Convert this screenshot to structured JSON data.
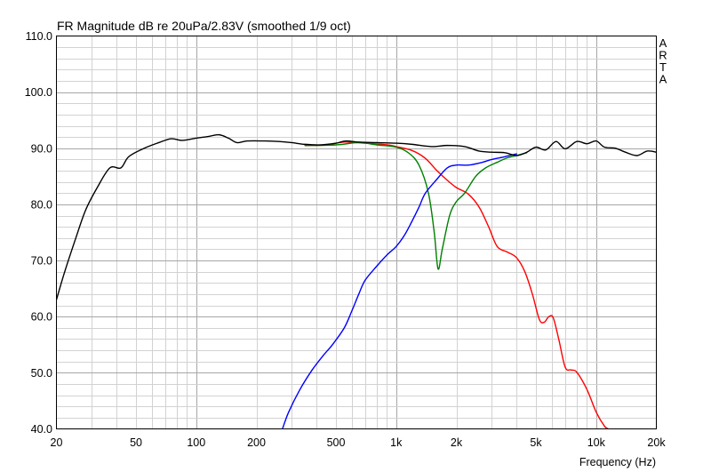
{
  "chart_data": {
    "type": "line",
    "title": "FR Magnitude dB re 20uPa/2.83V (smoothed 1/9 oct)",
    "xlabel": "Frequency (Hz)",
    "ylabel": "",
    "brand": "ARTA",
    "xscale": "log",
    "xlim": [
      20,
      20000
    ],
    "ylim": [
      40,
      110
    ],
    "grid": true,
    "x_ticks": [
      {
        "value": 20,
        "label": "20"
      },
      {
        "value": 50,
        "label": "50"
      },
      {
        "value": 100,
        "label": "100"
      },
      {
        "value": 200,
        "label": "200"
      },
      {
        "value": 500,
        "label": "500"
      },
      {
        "value": 1000,
        "label": "1k"
      },
      {
        "value": 2000,
        "label": "2k"
      },
      {
        "value": 5000,
        "label": "5k"
      },
      {
        "value": 10000,
        "label": "10k"
      },
      {
        "value": 20000,
        "label": "20k"
      }
    ],
    "y_ticks": [
      {
        "value": 40,
        "label": "40.0"
      },
      {
        "value": 50,
        "label": "50.0"
      },
      {
        "value": 60,
        "label": "60.0"
      },
      {
        "value": 70,
        "label": "70.0"
      },
      {
        "value": 80,
        "label": "80.0"
      },
      {
        "value": 90,
        "label": "90.0"
      },
      {
        "value": 100,
        "label": "100.0"
      },
      {
        "value": 110,
        "label": "110.0"
      }
    ],
    "series": [
      {
        "color": "#000000",
        "points": [
          [
            20,
            63
          ],
          [
            22,
            68
          ],
          [
            25,
            74
          ],
          [
            28,
            79
          ],
          [
            32,
            83
          ],
          [
            37,
            86.5
          ],
          [
            42,
            86.5
          ],
          [
            46,
            88.5
          ],
          [
            55,
            90
          ],
          [
            65,
            91
          ],
          [
            75,
            91.7
          ],
          [
            85,
            91.4
          ],
          [
            100,
            91.8
          ],
          [
            115,
            92.1
          ],
          [
            130,
            92.4
          ],
          [
            145,
            91.8
          ],
          [
            160,
            91
          ],
          [
            180,
            91.3
          ],
          [
            220,
            91.3
          ],
          [
            260,
            91.2
          ],
          [
            300,
            91
          ],
          [
            350,
            90.7
          ],
          [
            420,
            90.6
          ],
          [
            500,
            90.9
          ],
          [
            560,
            91.3
          ],
          [
            650,
            91.1
          ],
          [
            800,
            91
          ],
          [
            1000,
            90.9
          ],
          [
            1200,
            90.7
          ],
          [
            1500,
            90.3
          ],
          [
            1800,
            90.5
          ],
          [
            2200,
            90.3
          ],
          [
            2600,
            89.5
          ],
          [
            3000,
            89.3
          ],
          [
            3500,
            89.2
          ],
          [
            4000,
            88.7
          ],
          [
            4500,
            89.3
          ],
          [
            5000,
            90.2
          ],
          [
            5600,
            89.7
          ],
          [
            6300,
            91.2
          ],
          [
            7000,
            89.9
          ],
          [
            8000,
            91.2
          ],
          [
            9000,
            90.8
          ],
          [
            10000,
            91.3
          ],
          [
            11000,
            90.2
          ],
          [
            12500,
            90
          ],
          [
            14000,
            89.3
          ],
          [
            16000,
            88.7
          ],
          [
            18000,
            89.5
          ],
          [
            20000,
            89.3
          ]
        ]
      },
      {
        "color": "#ff0000",
        "points": [
          [
            350,
            90.5
          ],
          [
            450,
            90.6
          ],
          [
            550,
            91.1
          ],
          [
            700,
            90.9
          ],
          [
            900,
            90.6
          ],
          [
            1000,
            90.3
          ],
          [
            1200,
            89.6
          ],
          [
            1400,
            88.2
          ],
          [
            1600,
            86
          ],
          [
            1800,
            84.3
          ],
          [
            2000,
            83
          ],
          [
            2300,
            81.8
          ],
          [
            2600,
            79.5
          ],
          [
            2900,
            76
          ],
          [
            3200,
            72.5
          ],
          [
            3600,
            71.5
          ],
          [
            4000,
            70.5
          ],
          [
            4400,
            68
          ],
          [
            4800,
            64
          ],
          [
            5200,
            59.5
          ],
          [
            5500,
            59
          ],
          [
            5800,
            60
          ],
          [
            6100,
            59.8
          ],
          [
            6500,
            56
          ],
          [
            7000,
            51
          ],
          [
            7500,
            50.5
          ],
          [
            8000,
            50.1
          ],
          [
            9000,
            47
          ],
          [
            10000,
            43
          ],
          [
            11000,
            40.5
          ],
          [
            11500,
            40
          ]
        ]
      },
      {
        "color": "#008000",
        "points": [
          [
            350,
            90.5
          ],
          [
            500,
            90.6
          ],
          [
            650,
            91
          ],
          [
            800,
            90.6
          ],
          [
            1000,
            90.2
          ],
          [
            1150,
            89.2
          ],
          [
            1300,
            87
          ],
          [
            1450,
            82
          ],
          [
            1550,
            75
          ],
          [
            1620,
            68.5
          ],
          [
            1700,
            72
          ],
          [
            1850,
            78
          ],
          [
            2000,
            80.5
          ],
          [
            2200,
            82
          ],
          [
            2500,
            85
          ],
          [
            2800,
            86.5
          ],
          [
            3200,
            87.5
          ],
          [
            3600,
            88.3
          ],
          [
            4000,
            88.7
          ],
          [
            4500,
            89.2
          ]
        ]
      },
      {
        "color": "#0000ff",
        "points": [
          [
            270,
            40
          ],
          [
            290,
            43
          ],
          [
            330,
            47
          ],
          [
            380,
            50.5
          ],
          [
            430,
            53
          ],
          [
            480,
            55
          ],
          [
            550,
            58
          ],
          [
            600,
            61
          ],
          [
            650,
            64
          ],
          [
            700,
            66.5
          ],
          [
            800,
            69
          ],
          [
            900,
            71
          ],
          [
            1000,
            72.5
          ],
          [
            1100,
            74.5
          ],
          [
            1200,
            77
          ],
          [
            1300,
            79.5
          ],
          [
            1400,
            82
          ],
          [
            1600,
            84.5
          ],
          [
            1800,
            86.5
          ],
          [
            2000,
            87
          ],
          [
            2300,
            87
          ],
          [
            2700,
            87.5
          ],
          [
            3000,
            88
          ],
          [
            3500,
            88.5
          ],
          [
            4000,
            89
          ]
        ]
      }
    ]
  }
}
